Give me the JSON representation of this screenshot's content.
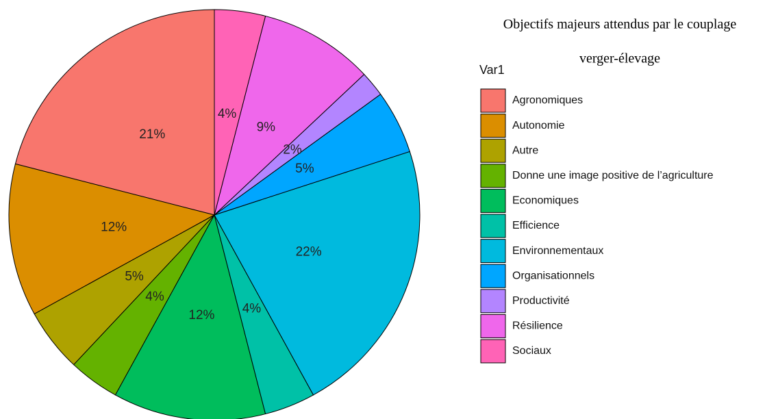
{
  "chart_data": {
    "type": "pie",
    "title": [
      "Objectifs majeurs attendus par le couplage",
      "verger-élevage"
    ],
    "legend_title": "Var1",
    "categories": [
      "Agronomiques",
      "Autonomie",
      "Autre",
      "Donne une image positive de l’agriculture",
      "Economiques",
      "Efficience",
      "Environnementaux",
      "Organisationnels",
      "Productivité",
      "Résilience",
      "Sociaux"
    ],
    "values": [
      21,
      12,
      5,
      4,
      12,
      4,
      22,
      5,
      2,
      9,
      4
    ],
    "value_labels": [
      "21%",
      "12%",
      "5%",
      "4%",
      "12%",
      "4%",
      "22%",
      "5%",
      "2%",
      "9%",
      "4%"
    ],
    "colors": [
      "#F8766D",
      "#DB8E00",
      "#AEA200",
      "#64B200",
      "#00BD5C",
      "#00C1A7",
      "#00BADE",
      "#00A6FF",
      "#B385FF",
      "#EF67EB",
      "#FF63B6"
    ],
    "direction": "counterclockwise"
  }
}
